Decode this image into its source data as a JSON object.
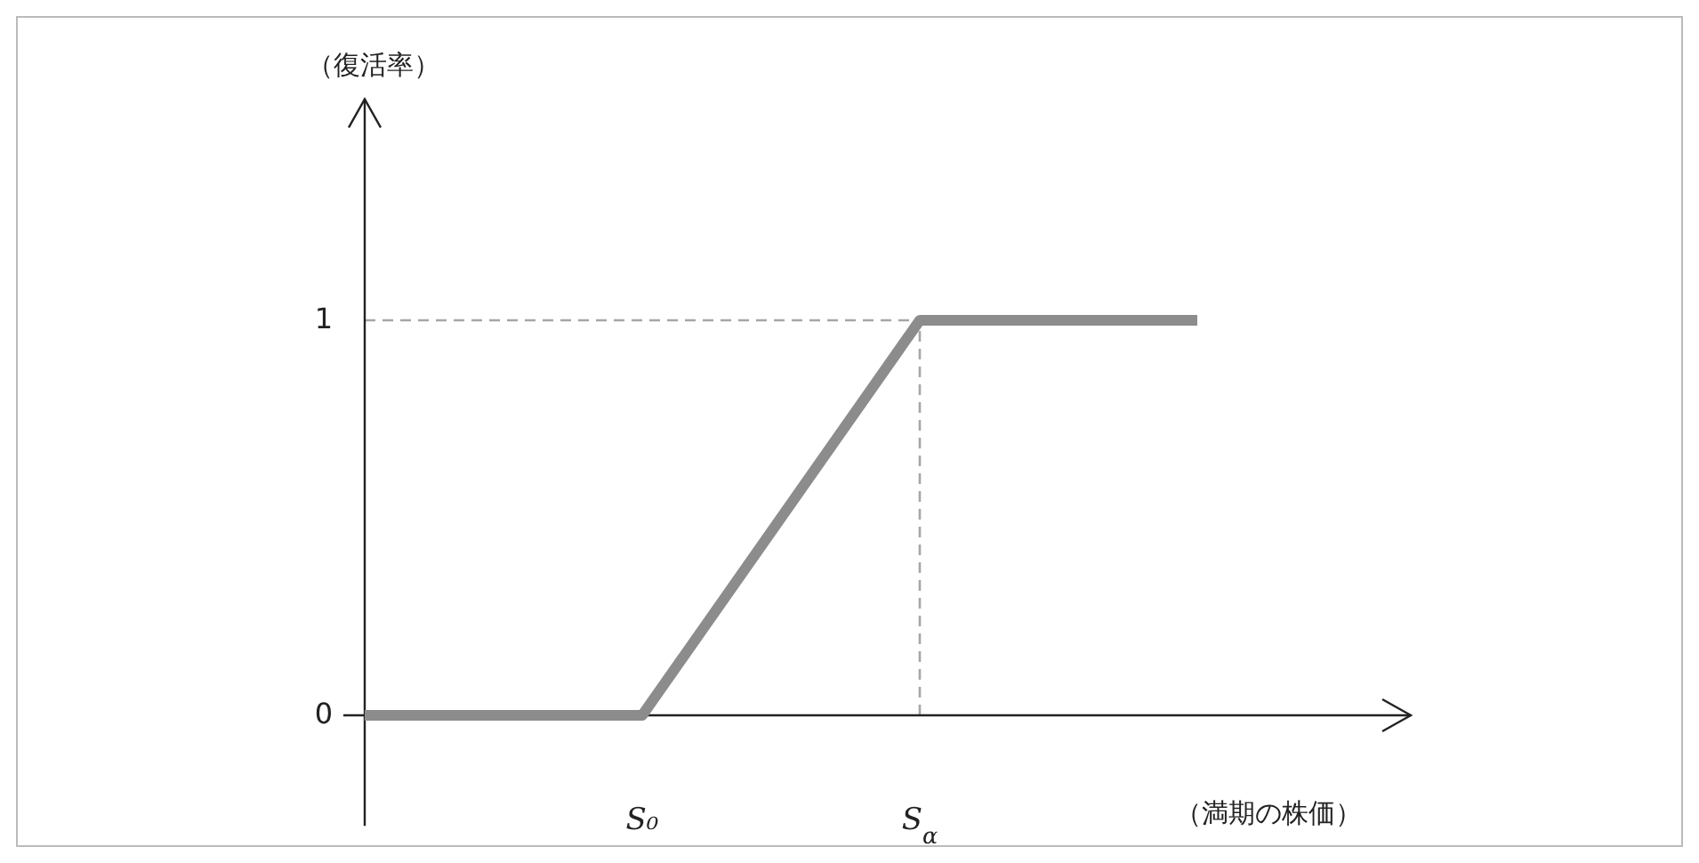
{
  "chart_data": {
    "type": "line",
    "xlabel": "（満期の株価）",
    "ylabel": "（復活率）",
    "categories": [
      null,
      "S₀",
      "S$_{α}$",
      null
    ],
    "series": [
      {
        "color": "#8c8c8c",
        "values": [
          0,
          0,
          1,
          1
        ]
      }
    ],
    "ylim": [
      -0.28,
      1.56
    ],
    "yticks": [
      0,
      1
    ],
    "ref_lines": [
      {
        "axis": "y",
        "value": 1,
        "color": "#a6a6a6",
        "line_style": "dashed"
      },
      {
        "axis": "x",
        "value": "S$_{α}$",
        "color": "#a6a6a6",
        "line_style": "dashed"
      }
    ],
    "marker": "none",
    "line_style": "solid"
  }
}
